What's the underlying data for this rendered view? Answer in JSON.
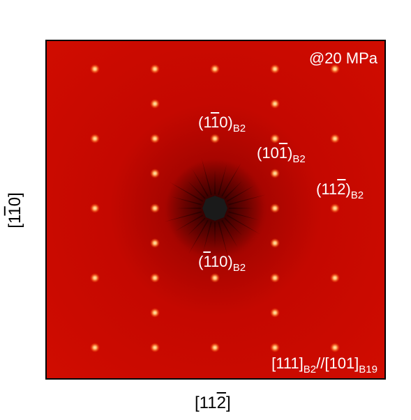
{
  "figure": {
    "pressure_label": "@20 MPa",
    "x_axis_label": {
      "open": "[11",
      "bar_digit": "2",
      "close": "]"
    },
    "y_axis_label": {
      "open": "[1",
      "bar_digit": "1",
      "close": "0]"
    },
    "zone_axis": {
      "part1": "[111]",
      "sub1": "B2",
      "sep": "//",
      "part2": "[101]",
      "sub2": "B19"
    },
    "spot_labels": [
      {
        "open": "(1",
        "bar": "1",
        "rest": "0)",
        "sub": "B2"
      },
      {
        "open": "(10",
        "bar": "1",
        "rest": ")",
        "sub": "B2"
      },
      {
        "open": "(11",
        "bar": "2",
        "rest": ")",
        "sub": "B2"
      },
      {
        "open": "(",
        "bar": "1",
        "rest": "10)",
        "sub": "B2"
      }
    ],
    "colors": {
      "background": "#c80800",
      "spot": "#ffd080",
      "center": "#1a1a1a"
    }
  }
}
